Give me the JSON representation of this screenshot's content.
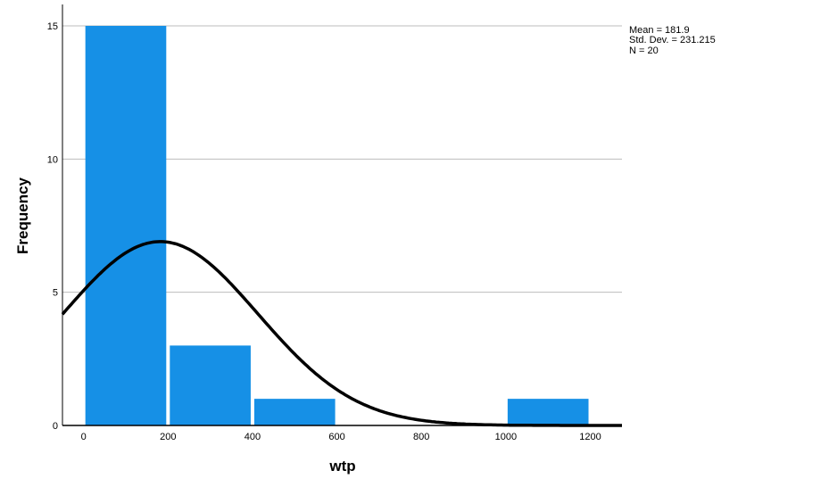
{
  "chart_data": {
    "type": "bar",
    "subtype": "histogram",
    "xlabel": "wtp",
    "ylabel": "Frequency",
    "bins": [
      {
        "x0": 0,
        "x1": 200,
        "count": 15
      },
      {
        "x0": 200,
        "x1": 400,
        "count": 3
      },
      {
        "x0": 400,
        "x1": 600,
        "count": 1
      },
      {
        "x0": 600,
        "x1": 800,
        "count": 0
      },
      {
        "x0": 800,
        "x1": 1000,
        "count": 0
      },
      {
        "x0": 1000,
        "x1": 1200,
        "count": 1
      }
    ],
    "xticks": [
      0,
      200,
      400,
      600,
      800,
      1000,
      1200
    ],
    "yticks": [
      0,
      5,
      10,
      15
    ],
    "xlim": [
      -50,
      1275
    ],
    "ylim": [
      0,
      15
    ],
    "grid": "horizontal",
    "normal_curve": {
      "mean": 181.9,
      "sd": 231.215,
      "n": 20,
      "bin_width": 200
    },
    "stats": [
      {
        "text": "Mean = 181.9"
      },
      {
        "text": "Std. Dev. = 231.215"
      },
      {
        "text": "N = 20"
      }
    ],
    "colors": {
      "bar": "#1690E6",
      "curve": "#000000",
      "grid": "#BDBDBD"
    }
  }
}
